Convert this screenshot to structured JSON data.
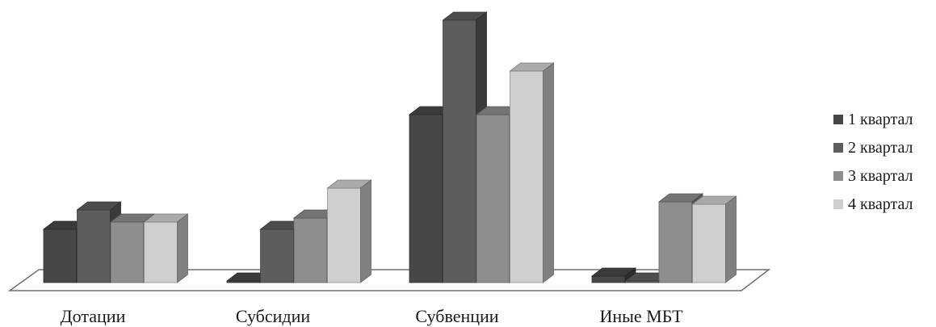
{
  "chart_data": {
    "type": "bar",
    "categories": [
      "Дотации",
      "Субсидии",
      "Субвенции",
      "Иные МБТ"
    ],
    "series": [
      {
        "name": "1 квартал",
        "values": [
          66,
          2,
          208,
          8
        ]
      },
      {
        "name": "2 квартал",
        "values": [
          90,
          66,
          325,
          2
        ]
      },
      {
        "name": "3 квартал",
        "values": [
          75,
          80,
          208,
          100
        ]
      },
      {
        "name": "4 квартал",
        "values": [
          75,
          117,
          262,
          97
        ]
      }
    ],
    "title": "",
    "xlabel": "",
    "ylabel": "",
    "ylim": [
      0,
      330
    ],
    "grid": false,
    "legend": "right",
    "colors": {
      "series": [
        "#474747",
        "#5d5d5d",
        "#8e8e8e",
        "#cfcfcf"
      ],
      "floor": "#ffffff",
      "floor_edge": "#707070"
    }
  }
}
